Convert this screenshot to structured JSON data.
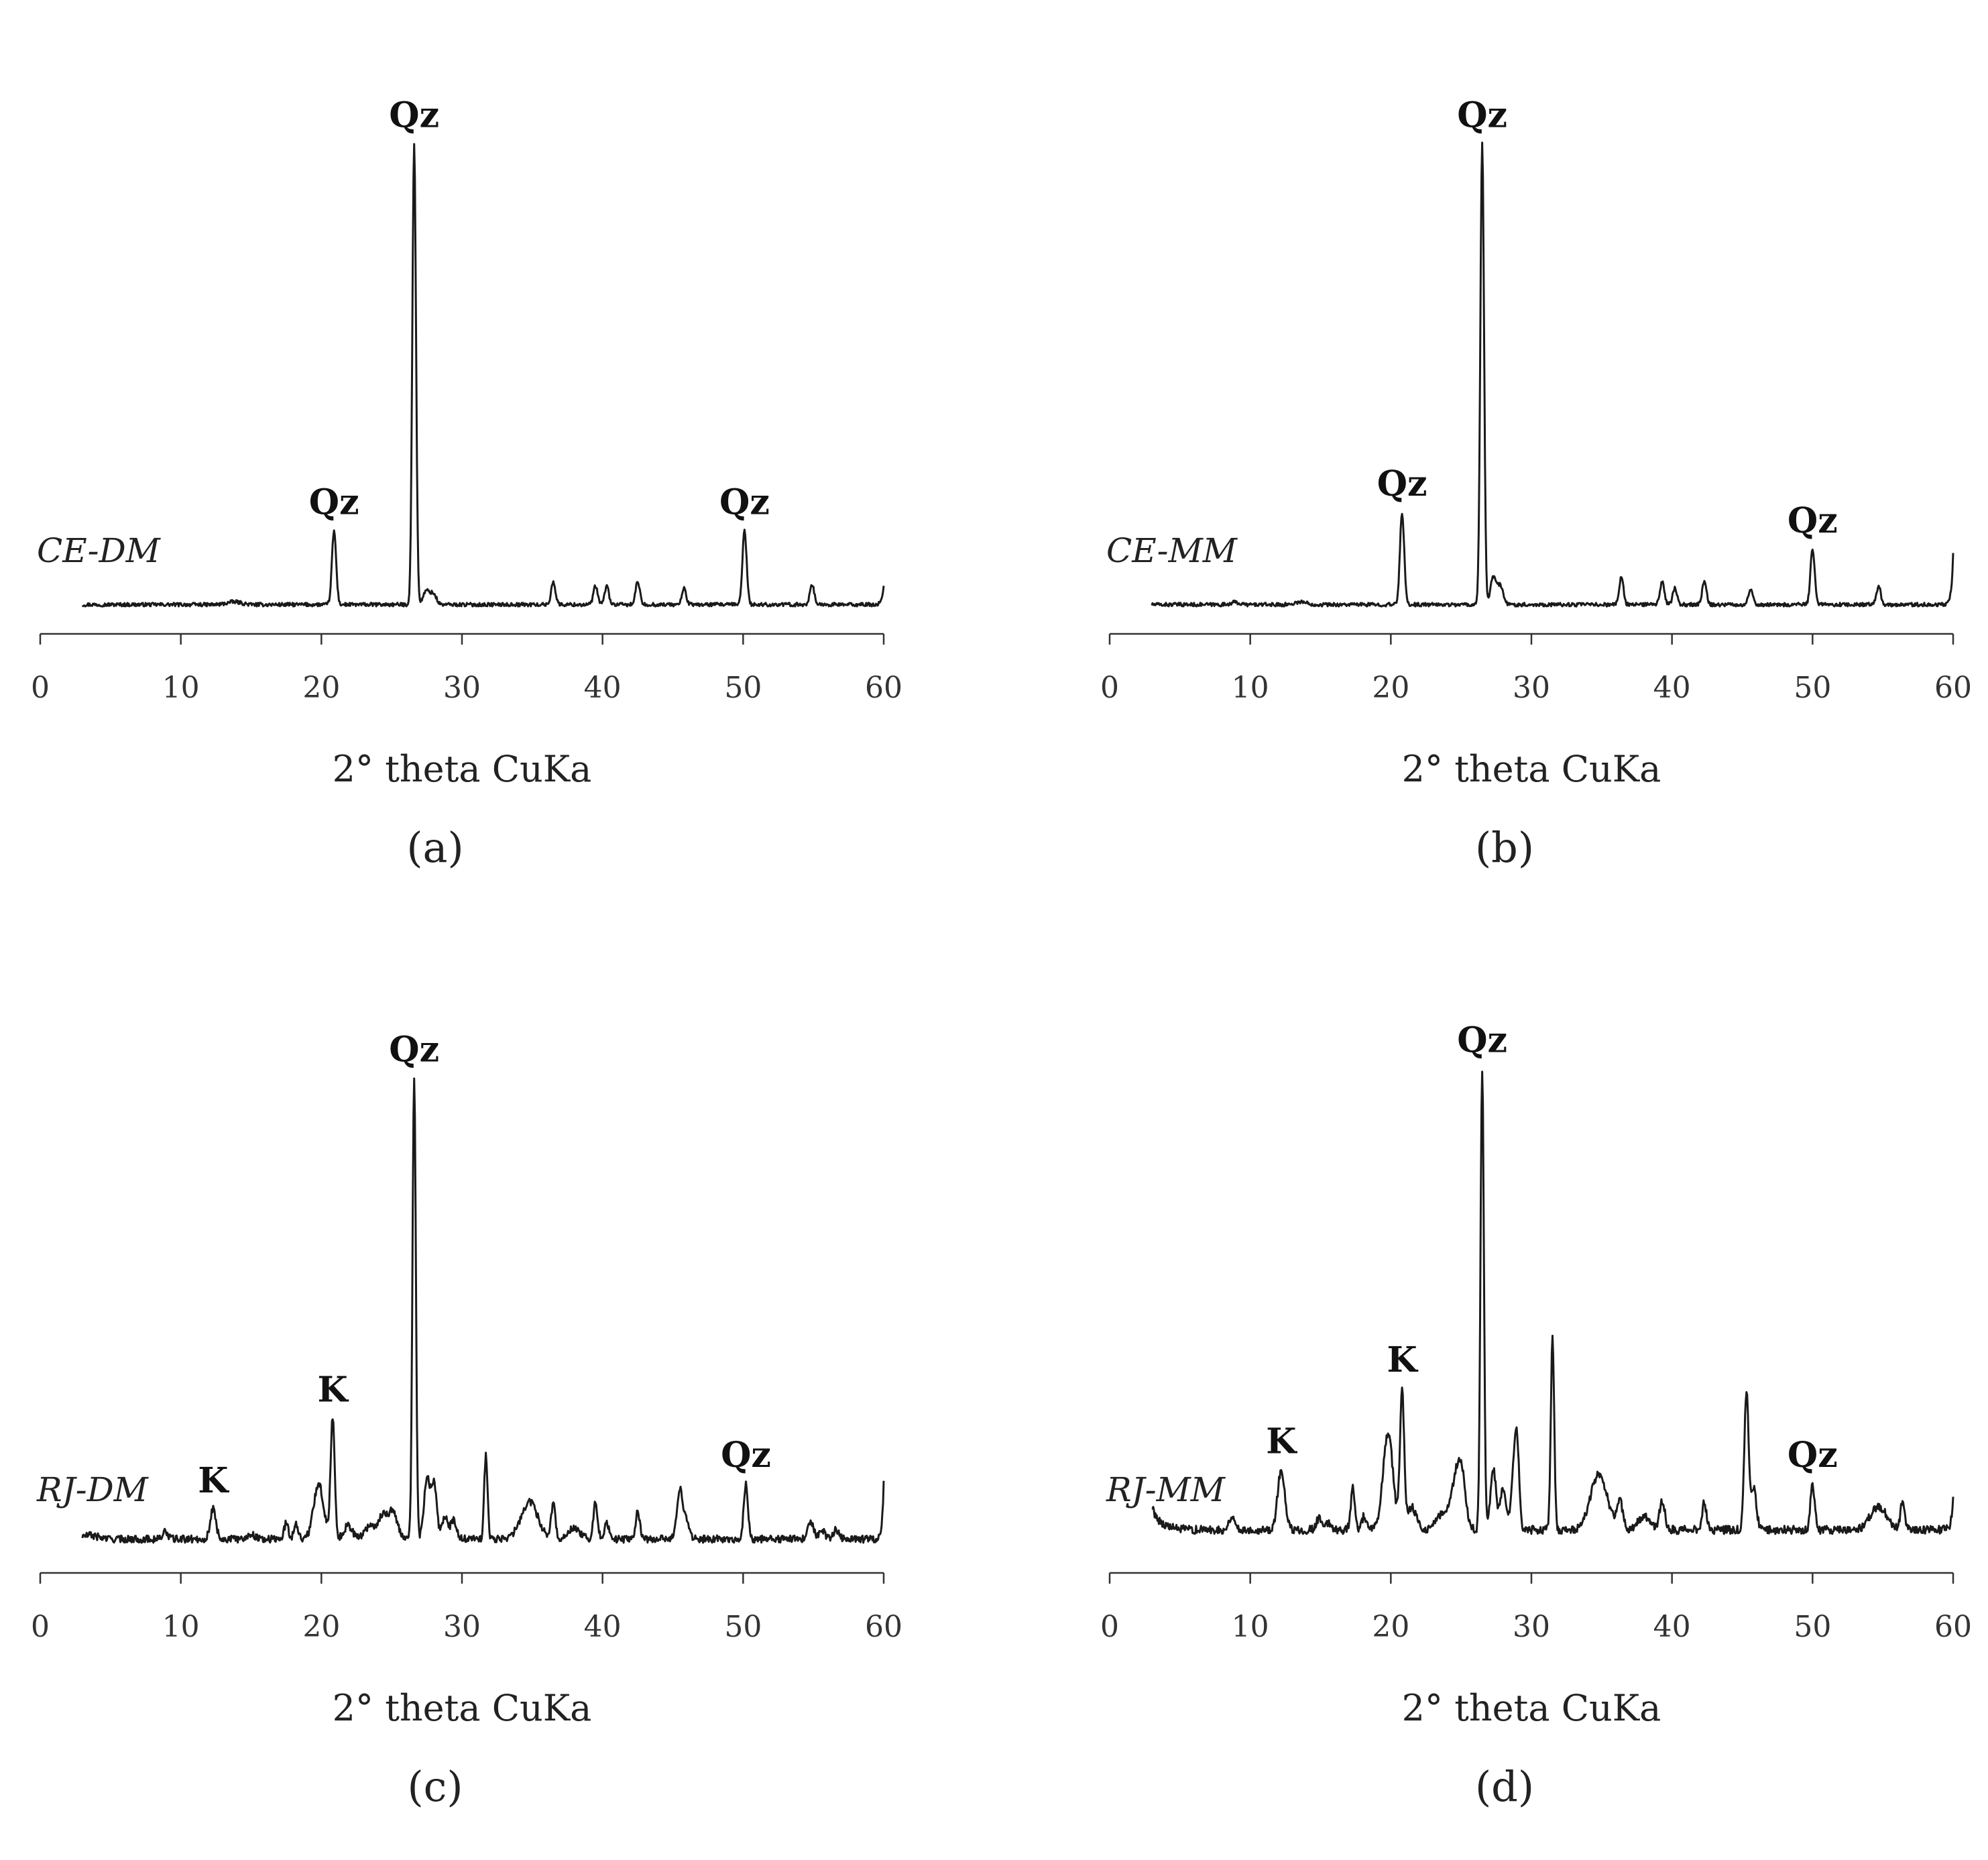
{
  "chart_data": [
    {
      "id": "a",
      "type": "line",
      "panel_label": "(a)",
      "sample_label": "CE-DM",
      "xlabel": "2° theta CuKa",
      "xlim": [
        0,
        60
      ],
      "xticks": [
        "0",
        "10",
        "20",
        "30",
        "40",
        "50",
        "60"
      ],
      "ylim": [
        0,
        100
      ],
      "baseline": 3,
      "noise": 0.4,
      "trace_start": 3,
      "trace_end": 60,
      "tail_rise": 4,
      "peaks": [
        {
          "x": 13.8,
          "h": 0.6,
          "w": 0.5
        },
        {
          "x": 20.9,
          "h": 16,
          "w": 0.15
        },
        {
          "x": 26.6,
          "h": 100,
          "w": 0.13
        },
        {
          "x": 27.5,
          "h": 3,
          "w": 0.25
        },
        {
          "x": 28.0,
          "h": 2,
          "w": 0.2
        },
        {
          "x": 36.5,
          "h": 5,
          "w": 0.15
        },
        {
          "x": 39.5,
          "h": 4,
          "w": 0.15
        },
        {
          "x": 40.3,
          "h": 4,
          "w": 0.15
        },
        {
          "x": 42.5,
          "h": 5,
          "w": 0.15
        },
        {
          "x": 45.8,
          "h": 3.5,
          "w": 0.15
        },
        {
          "x": 50.1,
          "h": 16,
          "w": 0.15
        },
        {
          "x": 54.9,
          "h": 4.5,
          "w": 0.15
        }
      ],
      "annotations": [
        {
          "text": "Qz",
          "x": 20.9
        },
        {
          "text": "Qz",
          "x": 26.6
        },
        {
          "text": "Qz",
          "x": 50.1
        }
      ]
    },
    {
      "id": "b",
      "type": "line",
      "panel_label": "(b)",
      "sample_label": "CE-MM",
      "xlabel": "2° theta CuKa",
      "xlim": [
        0,
        60
      ],
      "xticks": [
        "0",
        "10",
        "20",
        "30",
        "40",
        "50",
        "60"
      ],
      "ylim": [
        0,
        100
      ],
      "baseline": 3,
      "noise": 0.4,
      "trace_start": 3,
      "trace_end": 60,
      "tail_rise": 11,
      "peaks": [
        {
          "x": 8.9,
          "h": 0.5,
          "w": 0.3
        },
        {
          "x": 13.6,
          "h": 0.6,
          "w": 0.4
        },
        {
          "x": 20.8,
          "h": 20,
          "w": 0.15
        },
        {
          "x": 26.5,
          "h": 100,
          "w": 0.13
        },
        {
          "x": 27.3,
          "h": 6,
          "w": 0.2
        },
        {
          "x": 27.8,
          "h": 4,
          "w": 0.2
        },
        {
          "x": 36.4,
          "h": 6,
          "w": 0.15
        },
        {
          "x": 39.3,
          "h": 5,
          "w": 0.15
        },
        {
          "x": 40.2,
          "h": 3.5,
          "w": 0.15
        },
        {
          "x": 42.3,
          "h": 5,
          "w": 0.15
        },
        {
          "x": 45.6,
          "h": 3.5,
          "w": 0.15
        },
        {
          "x": 50.0,
          "h": 12,
          "w": 0.15
        },
        {
          "x": 54.7,
          "h": 4,
          "w": 0.15
        }
      ],
      "annotations": [
        {
          "text": "Qz",
          "x": 20.8
        },
        {
          "text": "Qz",
          "x": 26.5
        },
        {
          "text": "Qz",
          "x": 50.0
        }
      ]
    },
    {
      "id": "c",
      "type": "line",
      "panel_label": "(c)",
      "sample_label": "RJ-DM",
      "xlabel": "2° theta CuKa",
      "xlim": [
        0,
        60
      ],
      "xticks": [
        "0",
        "10",
        "20",
        "30",
        "40",
        "50",
        "60"
      ],
      "ylim": [
        0,
        100
      ],
      "baseline": 4,
      "noise": 0.8,
      "trace_start": 3,
      "trace_end": 60,
      "tail_rise": 12,
      "peaks": [
        {
          "x": 3.5,
          "h": 0.8,
          "w": 0.6
        },
        {
          "x": 8.9,
          "h": 1.5,
          "w": 0.2
        },
        {
          "x": 12.3,
          "h": 6.5,
          "w": 0.2
        },
        {
          "x": 15.0,
          "h": 1,
          "w": 0.3
        },
        {
          "x": 17.5,
          "h": 3.5,
          "w": 0.15
        },
        {
          "x": 18.2,
          "h": 3.5,
          "w": 0.15
        },
        {
          "x": 19.8,
          "h": 12,
          "w": 0.35
        },
        {
          "x": 20.8,
          "h": 26,
          "w": 0.15
        },
        {
          "x": 21.9,
          "h": 3,
          "w": 0.3
        },
        {
          "x": 23.5,
          "h": 3,
          "w": 0.4
        },
        {
          "x": 24.4,
          "h": 5,
          "w": 0.3
        },
        {
          "x": 25.1,
          "h": 6,
          "w": 0.3
        },
        {
          "x": 26.6,
          "h": 100,
          "w": 0.12
        },
        {
          "x": 27.5,
          "h": 13,
          "w": 0.2
        },
        {
          "x": 28.0,
          "h": 12,
          "w": 0.2
        },
        {
          "x": 28.8,
          "h": 5,
          "w": 0.2
        },
        {
          "x": 29.4,
          "h": 4,
          "w": 0.2
        },
        {
          "x": 31.7,
          "h": 18,
          "w": 0.12
        },
        {
          "x": 34.8,
          "h": 8,
          "w": 0.6
        },
        {
          "x": 36.5,
          "h": 7.5,
          "w": 0.15
        },
        {
          "x": 38.0,
          "h": 2.5,
          "w": 0.4
        },
        {
          "x": 39.5,
          "h": 8,
          "w": 0.15
        },
        {
          "x": 40.3,
          "h": 3.5,
          "w": 0.15
        },
        {
          "x": 42.5,
          "h": 6,
          "w": 0.15
        },
        {
          "x": 45.5,
          "h": 11,
          "w": 0.2
        },
        {
          "x": 46.0,
          "h": 4,
          "w": 0.2
        },
        {
          "x": 50.2,
          "h": 12,
          "w": 0.15
        },
        {
          "x": 54.8,
          "h": 4,
          "w": 0.2
        },
        {
          "x": 55.6,
          "h": 2,
          "w": 0.2
        },
        {
          "x": 56.6,
          "h": 2,
          "w": 0.2
        }
      ],
      "annotations": [
        {
          "text": "K",
          "x": 12.3
        },
        {
          "text": "K",
          "x": 20.8
        },
        {
          "text": "Qz",
          "x": 26.6
        },
        {
          "text": "Qz",
          "x": 50.2
        }
      ]
    },
    {
      "id": "d",
      "type": "line",
      "panel_label": "(d)",
      "sample_label": "RJ-MM",
      "xlabel": "2° theta CuKa",
      "xlim": [
        0,
        60
      ],
      "xticks": [
        "0",
        "10",
        "20",
        "30",
        "40",
        "50",
        "60"
      ],
      "ylim": [
        0,
        100
      ],
      "baseline": 6,
      "noise": 0.9,
      "trace_start": 3,
      "trace_end": 60,
      "tail_rise": 8,
      "head_rise": 5,
      "peaks": [
        {
          "x": 8.7,
          "h": 3,
          "w": 0.2
        },
        {
          "x": 12.2,
          "h": 13,
          "w": 0.25
        },
        {
          "x": 14.9,
          "h": 2.5,
          "w": 0.2
        },
        {
          "x": 15.6,
          "h": 1.5,
          "w": 0.2
        },
        {
          "x": 17.3,
          "h": 9,
          "w": 0.15
        },
        {
          "x": 18.1,
          "h": 3,
          "w": 0.15
        },
        {
          "x": 19.8,
          "h": 21,
          "w": 0.35
        },
        {
          "x": 20.8,
          "h": 30,
          "w": 0.15
        },
        {
          "x": 21.5,
          "h": 5,
          "w": 0.3
        },
        {
          "x": 23.5,
          "h": 3,
          "w": 0.4
        },
        {
          "x": 24.5,
          "h": 8,
          "w": 0.35
        },
        {
          "x": 25.0,
          "h": 12,
          "w": 0.3
        },
        {
          "x": 26.5,
          "h": 100,
          "w": 0.12
        },
        {
          "x": 27.3,
          "h": 13,
          "w": 0.2
        },
        {
          "x": 28.0,
          "h": 9,
          "w": 0.2
        },
        {
          "x": 28.8,
          "h": 14,
          "w": 0.2
        },
        {
          "x": 29.0,
          "h": 12,
          "w": 0.15
        },
        {
          "x": 31.5,
          "h": 42,
          "w": 0.12
        },
        {
          "x": 34.8,
          "h": 12,
          "w": 0.6
        },
        {
          "x": 36.3,
          "h": 6,
          "w": 0.2
        },
        {
          "x": 38.0,
          "h": 3,
          "w": 0.4
        },
        {
          "x": 39.3,
          "h": 6,
          "w": 0.2
        },
        {
          "x": 42.3,
          "h": 6,
          "w": 0.15
        },
        {
          "x": 45.3,
          "h": 30,
          "w": 0.15
        },
        {
          "x": 45.8,
          "h": 9,
          "w": 0.2
        },
        {
          "x": 50.0,
          "h": 10,
          "w": 0.15
        },
        {
          "x": 54.7,
          "h": 5,
          "w": 0.6
        },
        {
          "x": 56.4,
          "h": 6,
          "w": 0.15
        }
      ],
      "annotations": [
        {
          "text": "K",
          "x": 12.2
        },
        {
          "text": "K",
          "x": 20.8
        },
        {
          "text": "Qz",
          "x": 26.5
        },
        {
          "text": "Qz",
          "x": 50.0
        }
      ]
    }
  ]
}
